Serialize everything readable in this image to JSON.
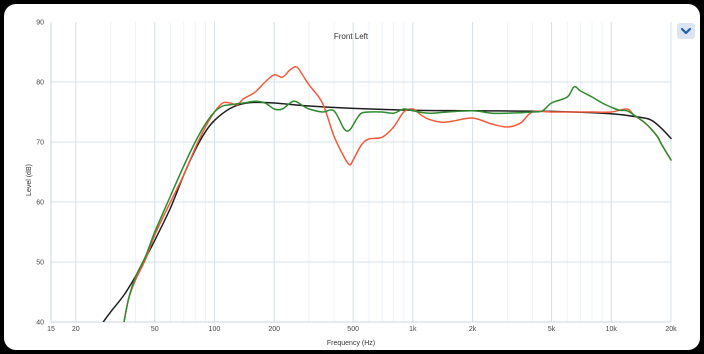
{
  "chart_data": {
    "type": "line",
    "title": "Front Left",
    "xlabel": "Frequency (Hz)",
    "ylabel": "Level (dB)",
    "xscale": "log",
    "xlim": [
      15,
      20000
    ],
    "ylim": [
      40,
      90
    ],
    "grid": true,
    "x_ticks": [
      {
        "value": 15,
        "label": "15"
      },
      {
        "value": 20,
        "label": "20"
      },
      {
        "value": 50,
        "label": "50"
      },
      {
        "value": 100,
        "label": "100"
      },
      {
        "value": 200,
        "label": "200"
      },
      {
        "value": 500,
        "label": "500"
      },
      {
        "value": 1000,
        "label": "1k"
      },
      {
        "value": 2000,
        "label": "2k"
      },
      {
        "value": 5000,
        "label": "5k"
      },
      {
        "value": 10000,
        "label": "10k"
      },
      {
        "value": 20000,
        "label": "20k"
      }
    ],
    "y_ticks": [
      40,
      50,
      60,
      70,
      80,
      90
    ],
    "series": [
      {
        "color": "#1e1e1e",
        "points": [
          [
            27.5,
            40
          ],
          [
            30,
            41.7
          ],
          [
            35,
            44.5
          ],
          [
            40,
            47.6
          ],
          [
            45,
            50.7
          ],
          [
            50,
            53.6
          ],
          [
            60,
            59
          ],
          [
            70,
            64.5
          ],
          [
            80,
            68.7
          ],
          [
            90,
            71.7
          ],
          [
            100,
            73.6
          ],
          [
            120,
            75.6
          ],
          [
            140,
            76.4
          ],
          [
            160,
            76.6
          ],
          [
            200,
            76.5
          ],
          [
            300,
            76
          ],
          [
            500,
            75.6
          ],
          [
            1000,
            75.3
          ],
          [
            2000,
            75.2
          ],
          [
            5000,
            75.1
          ],
          [
            10000,
            74.7
          ],
          [
            14000,
            74.1
          ],
          [
            16000,
            73.6
          ],
          [
            18000,
            72.2
          ],
          [
            20000,
            70.6
          ]
        ]
      },
      {
        "color": "#f05a3c",
        "points": [
          [
            35,
            40
          ],
          [
            37,
            44
          ],
          [
            40,
            47
          ],
          [
            45,
            50.5
          ],
          [
            50,
            54.5
          ],
          [
            60,
            60
          ],
          [
            70,
            64.5
          ],
          [
            80,
            69
          ],
          [
            90,
            72.5
          ],
          [
            100,
            75
          ],
          [
            110,
            76.5
          ],
          [
            120,
            76.5
          ],
          [
            130,
            76.2
          ],
          [
            140,
            77.2
          ],
          [
            160,
            78.3
          ],
          [
            180,
            80
          ],
          [
            200,
            81.2
          ],
          [
            220,
            80.8
          ],
          [
            240,
            82
          ],
          [
            260,
            82.5
          ],
          [
            280,
            81
          ],
          [
            300,
            79.5
          ],
          [
            350,
            76.5
          ],
          [
            400,
            71
          ],
          [
            450,
            67.5
          ],
          [
            480,
            66.2
          ],
          [
            500,
            67
          ],
          [
            550,
            69.5
          ],
          [
            600,
            70.5
          ],
          [
            700,
            70.8
          ],
          [
            800,
            72.5
          ],
          [
            900,
            75
          ],
          [
            1000,
            75.5
          ],
          [
            1100,
            74.5
          ],
          [
            1200,
            73.8
          ],
          [
            1400,
            73.3
          ],
          [
            1600,
            73.5
          ],
          [
            2000,
            74
          ],
          [
            2500,
            73
          ],
          [
            3000,
            72.5
          ],
          [
            3500,
            73.2
          ],
          [
            4000,
            75
          ],
          [
            5000,
            75
          ],
          [
            6000,
            75
          ],
          [
            7000,
            75
          ],
          [
            8000,
            75
          ],
          [
            10000,
            75
          ],
          [
            12000,
            75.5
          ],
          [
            13000,
            74.5
          ],
          [
            15000,
            73
          ],
          [
            17000,
            71
          ],
          [
            18000,
            69.5
          ],
          [
            20000,
            67
          ]
        ]
      },
      {
        "color": "#2e8a2e",
        "points": [
          [
            35,
            40
          ],
          [
            37,
            44
          ],
          [
            40,
            47.5
          ],
          [
            45,
            51
          ],
          [
            50,
            55
          ],
          [
            60,
            61
          ],
          [
            70,
            66
          ],
          [
            80,
            70
          ],
          [
            90,
            73
          ],
          [
            100,
            75
          ],
          [
            110,
            76
          ],
          [
            120,
            76.2
          ],
          [
            140,
            76.5
          ],
          [
            160,
            76.8
          ],
          [
            180,
            76.5
          ],
          [
            200,
            75.5
          ],
          [
            220,
            75.5
          ],
          [
            250,
            76.8
          ],
          [
            280,
            76
          ],
          [
            300,
            75.5
          ],
          [
            350,
            75
          ],
          [
            400,
            75.2
          ],
          [
            450,
            72.2
          ],
          [
            480,
            72
          ],
          [
            520,
            73.8
          ],
          [
            550,
            74.8
          ],
          [
            600,
            75
          ],
          [
            700,
            75
          ],
          [
            800,
            74.8
          ],
          [
            900,
            75.5
          ],
          [
            1000,
            75.2
          ],
          [
            1200,
            74.8
          ],
          [
            1500,
            75
          ],
          [
            2000,
            75.2
          ],
          [
            2500,
            74.8
          ],
          [
            3000,
            74.8
          ],
          [
            4000,
            75
          ],
          [
            4500,
            75.2
          ],
          [
            5000,
            76.5
          ],
          [
            6000,
            77.5
          ],
          [
            6500,
            79.2
          ],
          [
            7000,
            78.5
          ],
          [
            8000,
            77.5
          ],
          [
            9000,
            76.5
          ],
          [
            10000,
            75.8
          ],
          [
            11000,
            75.3
          ],
          [
            12000,
            75.2
          ],
          [
            13000,
            74.5
          ],
          [
            15000,
            73
          ],
          [
            17000,
            71
          ],
          [
            18000,
            69.5
          ],
          [
            20000,
            67
          ]
        ]
      }
    ]
  },
  "menu_button": {
    "icon": "chevron-down-icon",
    "background": "#dbe5f1",
    "icon_color": "#1f5fa8"
  }
}
